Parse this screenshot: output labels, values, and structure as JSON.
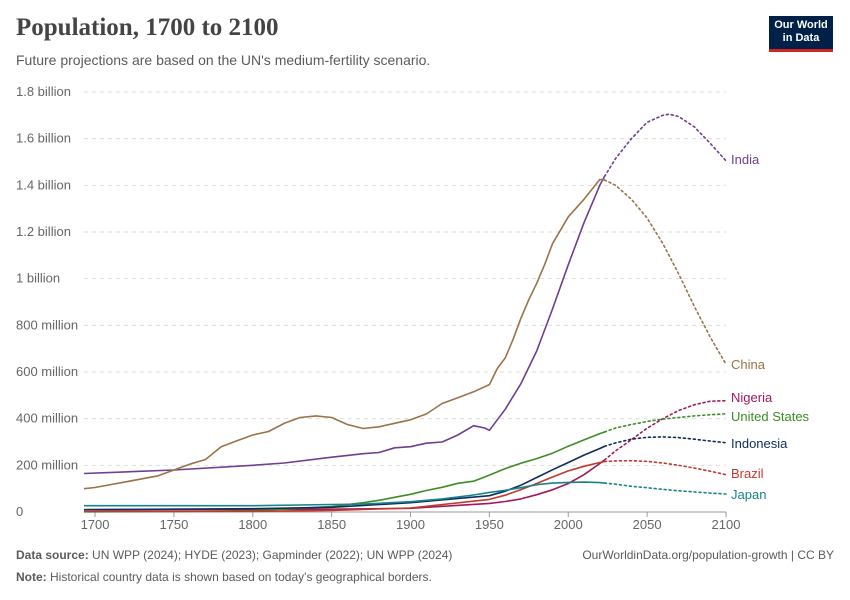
{
  "header": {
    "title": "Population, 1700 to 2100",
    "subtitle": "Future projections are based on the UN's medium-fertility scenario.",
    "logo_line1": "Our World",
    "logo_line2": "in Data"
  },
  "footer": {
    "source_label": "Data source:",
    "source_text": "UN WPP (2024); HYDE (2023); Gapminder (2022); UN WPP (2024)",
    "url_text": "OurWorldinData.org/population-growth | CC BY",
    "note_label": "Note:",
    "note_text": "Historical country data is shown based on today's geographical borders."
  },
  "chart_data": {
    "type": "line",
    "title": "Population, 1700 to 2100",
    "xlim": [
      1693,
      2100
    ],
    "ylim": [
      0,
      1800000000
    ],
    "x_ticks": [
      {
        "value": 1700,
        "label": "1700"
      },
      {
        "value": 1750,
        "label": "1750"
      },
      {
        "value": 1800,
        "label": "1800"
      },
      {
        "value": 1850,
        "label": "1850"
      },
      {
        "value": 1900,
        "label": "1900"
      },
      {
        "value": 1950,
        "label": "1950"
      },
      {
        "value": 2000,
        "label": "2000"
      },
      {
        "value": 2050,
        "label": "2050"
      },
      {
        "value": 2100,
        "label": "2100"
      }
    ],
    "y_ticks": [
      {
        "value": 0,
        "label": "0"
      },
      {
        "value": 200000000,
        "label": "200 million"
      },
      {
        "value": 400000000,
        "label": "400 million"
      },
      {
        "value": 600000000,
        "label": "600 million"
      },
      {
        "value": 800000000,
        "label": "800 million"
      },
      {
        "value": 1000000000,
        "label": "1 billion"
      },
      {
        "value": 1200000000,
        "label": "1.2 billion"
      },
      {
        "value": 1400000000,
        "label": "1.4 billion"
      },
      {
        "value": 1600000000,
        "label": "1.6 billion"
      },
      {
        "value": 1800000000,
        "label": "1.8 billion"
      }
    ],
    "grid": "horizontal dashed",
    "projection_start": 2023,
    "series": [
      {
        "name": "India",
        "color": "#6d3e91",
        "x": [
          1693,
          1750,
          1800,
          1820,
          1850,
          1870,
          1880,
          1890,
          1900,
          1910,
          1920,
          1930,
          1940,
          1947,
          1950,
          1960,
          1970,
          1980,
          1990,
          2000,
          2010,
          2020,
          2023,
          2030,
          2040,
          2050,
          2060,
          2064,
          2070,
          2080,
          2090,
          2100
        ],
        "y": [
          165000000,
          180000000,
          200000000,
          210000000,
          235000000,
          250000000,
          255000000,
          275000000,
          280000000,
          295000000,
          300000000,
          330000000,
          370000000,
          360000000,
          350000000,
          440000000,
          550000000,
          690000000,
          870000000,
          1060000000,
          1240000000,
          1400000000,
          1438000000,
          1515000000,
          1600000000,
          1670000000,
          1700000000,
          1705000000,
          1695000000,
          1650000000,
          1580000000,
          1505000000
        ]
      },
      {
        "name": "China",
        "color": "#9a7447",
        "x": [
          1693,
          1700,
          1720,
          1740,
          1760,
          1770,
          1780,
          1790,
          1800,
          1810,
          1820,
          1830,
          1840,
          1850,
          1860,
          1870,
          1880,
          1890,
          1900,
          1910,
          1920,
          1930,
          1940,
          1950,
          1955,
          1960,
          1965,
          1970,
          1975,
          1980,
          1985,
          1990,
          2000,
          2010,
          2020,
          2023,
          2030,
          2040,
          2050,
          2060,
          2070,
          2080,
          2090,
          2100
        ],
        "y": [
          100000000,
          105000000,
          130000000,
          155000000,
          205000000,
          225000000,
          280000000,
          305000000,
          330000000,
          345000000,
          380000000,
          405000000,
          412000000,
          405000000,
          375000000,
          358000000,
          365000000,
          380000000,
          395000000,
          420000000,
          465000000,
          490000000,
          515000000,
          546000000,
          615000000,
          660000000,
          740000000,
          830000000,
          910000000,
          980000000,
          1060000000,
          1150000000,
          1265000000,
          1340000000,
          1425000000,
          1423000000,
          1400000000,
          1340000000,
          1260000000,
          1150000000,
          1020000000,
          880000000,
          750000000,
          633000000
        ]
      },
      {
        "name": "Nigeria",
        "color": "#a2185e",
        "x": [
          1693,
          1850,
          1900,
          1950,
          1960,
          1970,
          1980,
          1990,
          2000,
          2010,
          2020,
          2023,
          2030,
          2040,
          2050,
          2060,
          2070,
          2080,
          2090,
          2100
        ],
        "y": [
          10000000,
          12000000,
          16000000,
          37000000,
          45000000,
          56000000,
          74000000,
          95000000,
          122000000,
          160000000,
          208000000,
          223000000,
          262000000,
          310000000,
          359000000,
          400000000,
          435000000,
          460000000,
          475000000,
          477000000
        ]
      },
      {
        "name": "United States",
        "color": "#3c8d25",
        "x": [
          1693,
          1750,
          1800,
          1850,
          1870,
          1880,
          1890,
          1900,
          1910,
          1920,
          1930,
          1940,
          1950,
          1960,
          1970,
          1980,
          1990,
          2000,
          2010,
          2020,
          2023,
          2030,
          2040,
          2050,
          2060,
          2070,
          2080,
          2090,
          2100
        ],
        "y": [
          1000000,
          2000000,
          6000000,
          23000000,
          40000000,
          50000000,
          63000000,
          76000000,
          92000000,
          106000000,
          123000000,
          132000000,
          158000000,
          186000000,
          209000000,
          229000000,
          252000000,
          282000000,
          309000000,
          336000000,
          343000000,
          360000000,
          375000000,
          388000000,
          398000000,
          405000000,
          412000000,
          417000000,
          421000000
        ]
      },
      {
        "name": "Indonesia",
        "color": "#0f2d5b",
        "x": [
          1693,
          1800,
          1850,
          1900,
          1950,
          1960,
          1970,
          1980,
          1990,
          2000,
          2010,
          2020,
          2023,
          2030,
          2040,
          2050,
          2060,
          2070,
          2080,
          2090,
          2100
        ],
        "y": [
          10000000,
          14000000,
          20000000,
          40000000,
          70000000,
          89000000,
          115000000,
          148000000,
          181000000,
          212000000,
          244000000,
          272000000,
          281000000,
          296000000,
          312000000,
          320000000,
          322000000,
          319000000,
          312000000,
          304000000,
          297000000
        ]
      },
      {
        "name": "Brazil",
        "color": "#c0392b",
        "x": [
          1693,
          1800,
          1850,
          1900,
          1950,
          1960,
          1970,
          1980,
          1990,
          2000,
          2010,
          2020,
          2023,
          2030,
          2040,
          2050,
          2060,
          2070,
          2080,
          2090,
          2100
        ],
        "y": [
          2000000,
          3000000,
          7000000,
          17000000,
          54000000,
          72000000,
          96000000,
          122000000,
          150000000,
          176000000,
          196000000,
          212000000,
          216000000,
          219000000,
          220000000,
          217000000,
          210000000,
          200000000,
          188000000,
          175000000,
          160000000
        ]
      },
      {
        "name": "Japan",
        "color": "#19838d",
        "x": [
          1693,
          1750,
          1800,
          1850,
          1870,
          1900,
          1920,
          1940,
          1950,
          1960,
          1970,
          1980,
          1990,
          2000,
          2010,
          2020,
          2023,
          2030,
          2040,
          2050,
          2060,
          2070,
          2080,
          2090,
          2100
        ],
        "y": [
          27000000,
          27000000,
          27000000,
          32000000,
          34000000,
          44000000,
          56000000,
          73000000,
          84000000,
          93000000,
          104000000,
          117000000,
          124000000,
          127000000,
          128000000,
          126000000,
          124000000,
          119000000,
          110000000,
          104000000,
          97000000,
          91000000,
          86000000,
          81000000,
          77000000
        ]
      }
    ]
  }
}
